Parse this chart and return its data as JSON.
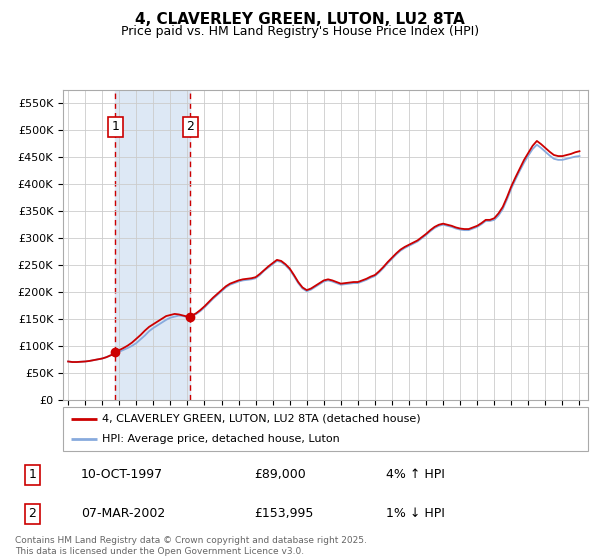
{
  "title": "4, CLAVERLEY GREEN, LUTON, LU2 8TA",
  "subtitle": "Price paid vs. HM Land Registry's House Price Index (HPI)",
  "ylim": [
    0,
    575000
  ],
  "yticks": [
    0,
    50000,
    100000,
    150000,
    200000,
    250000,
    300000,
    350000,
    400000,
    450000,
    500000,
    550000
  ],
  "ytick_labels": [
    "£0",
    "£50K",
    "£100K",
    "£150K",
    "£200K",
    "£250K",
    "£300K",
    "£350K",
    "£400K",
    "£450K",
    "£500K",
    "£550K"
  ],
  "sale1_year": 1997.78,
  "sale1_price": 89000,
  "sale1_label": "1",
  "sale1_date": "10-OCT-1997",
  "sale1_pct": "4% ↑ HPI",
  "sale2_year": 2002.18,
  "sale2_price": 153995,
  "sale2_label": "2",
  "sale2_date": "07-MAR-2002",
  "sale2_pct": "1% ↓ HPI",
  "line_color_red": "#cc0000",
  "line_color_blue": "#88aadd",
  "marker_color": "#cc0000",
  "shade_color": "#dde8f5",
  "dashed_color": "#cc0000",
  "grid_color": "#cccccc",
  "bg_color": "#ffffff",
  "legend_label_red": "4, CLAVERLEY GREEN, LUTON, LU2 8TA (detached house)",
  "legend_label_blue": "HPI: Average price, detached house, Luton",
  "copyright_text": "Contains HM Land Registry data © Crown copyright and database right 2025.\nThis data is licensed under the Open Government Licence v3.0.",
  "hpi_years": [
    1995.0,
    1995.25,
    1995.5,
    1995.75,
    1996.0,
    1996.25,
    1996.5,
    1996.75,
    1997.0,
    1997.25,
    1997.5,
    1997.75,
    1998.0,
    1998.25,
    1998.5,
    1998.75,
    1999.0,
    1999.25,
    1999.5,
    1999.75,
    2000.0,
    2000.25,
    2000.5,
    2000.75,
    2001.0,
    2001.25,
    2001.5,
    2001.75,
    2002.0,
    2002.25,
    2002.5,
    2002.75,
    2003.0,
    2003.25,
    2003.5,
    2003.75,
    2004.0,
    2004.25,
    2004.5,
    2004.75,
    2005.0,
    2005.25,
    2005.5,
    2005.75,
    2006.0,
    2006.25,
    2006.5,
    2006.75,
    2007.0,
    2007.25,
    2007.5,
    2007.75,
    2008.0,
    2008.25,
    2008.5,
    2008.75,
    2009.0,
    2009.25,
    2009.5,
    2009.75,
    2010.0,
    2010.25,
    2010.5,
    2010.75,
    2011.0,
    2011.25,
    2011.5,
    2011.75,
    2012.0,
    2012.25,
    2012.5,
    2012.75,
    2013.0,
    2013.25,
    2013.5,
    2013.75,
    2014.0,
    2014.25,
    2014.5,
    2014.75,
    2015.0,
    2015.25,
    2015.5,
    2015.75,
    2016.0,
    2016.25,
    2016.5,
    2016.75,
    2017.0,
    2017.25,
    2017.5,
    2017.75,
    2018.0,
    2018.25,
    2018.5,
    2018.75,
    2019.0,
    2019.25,
    2019.5,
    2019.75,
    2020.0,
    2020.25,
    2020.5,
    2020.75,
    2021.0,
    2021.25,
    2021.5,
    2021.75,
    2022.0,
    2022.25,
    2022.5,
    2022.75,
    2023.0,
    2023.25,
    2023.5,
    2023.75,
    2024.0,
    2024.25,
    2024.5,
    2024.75,
    2025.0
  ],
  "hpi_values": [
    72000,
    71000,
    71000,
    71500,
    72000,
    73000,
    74500,
    76000,
    77500,
    80000,
    83500,
    86000,
    90000,
    93500,
    97000,
    101000,
    106000,
    113000,
    120000,
    128000,
    134000,
    139000,
    144000,
    149000,
    153000,
    155000,
    157000,
    156000,
    154000,
    156000,
    159500,
    165000,
    172000,
    180000,
    188000,
    195000,
    202000,
    209000,
    214000,
    217000,
    220000,
    222000,
    223000,
    224000,
    226000,
    232000,
    240000,
    246000,
    252000,
    258000,
    256000,
    250000,
    242000,
    230000,
    217000,
    207000,
    202000,
    205000,
    210000,
    215000,
    220000,
    222000,
    220000,
    217000,
    214000,
    215000,
    216000,
    217000,
    217000,
    220000,
    223000,
    227000,
    230000,
    237000,
    245000,
    254000,
    262000,
    270000,
    277000,
    282000,
    286000,
    290000,
    294000,
    300000,
    306000,
    313000,
    319000,
    323000,
    325000,
    323000,
    321000,
    318000,
    316000,
    315000,
    315000,
    318000,
    321000,
    326000,
    332000,
    332000,
    334000,
    342000,
    354000,
    372000,
    392000,
    409000,
    425000,
    440000,
    453000,
    465000,
    473000,
    467000,
    460000,
    453000,
    447000,
    445000,
    445000,
    447000,
    449000,
    451000,
    452000
  ],
  "red_years": [
    1995.0,
    1995.25,
    1995.5,
    1995.75,
    1996.0,
    1996.25,
    1996.5,
    1996.75,
    1997.0,
    1997.25,
    1997.5,
    1997.75,
    1997.78,
    1998.0,
    1998.25,
    1998.5,
    1998.75,
    1999.0,
    1999.25,
    1999.5,
    1999.75,
    2000.0,
    2000.25,
    2000.5,
    2000.75,
    2001.0,
    2001.25,
    2001.5,
    2001.75,
    2002.0,
    2002.18,
    2002.25,
    2002.5,
    2002.75,
    2003.0,
    2003.25,
    2003.5,
    2003.75,
    2004.0,
    2004.25,
    2004.5,
    2004.75,
    2005.0,
    2005.25,
    2005.5,
    2005.75,
    2006.0,
    2006.25,
    2006.5,
    2006.75,
    2007.0,
    2007.25,
    2007.5,
    2007.75,
    2008.0,
    2008.25,
    2008.5,
    2008.75,
    2009.0,
    2009.25,
    2009.5,
    2009.75,
    2010.0,
    2010.25,
    2010.5,
    2010.75,
    2011.0,
    2011.25,
    2011.5,
    2011.75,
    2012.0,
    2012.25,
    2012.5,
    2012.75,
    2013.0,
    2013.25,
    2013.5,
    2013.75,
    2014.0,
    2014.25,
    2014.5,
    2014.75,
    2015.0,
    2015.25,
    2015.5,
    2015.75,
    2016.0,
    2016.25,
    2016.5,
    2016.75,
    2017.0,
    2017.25,
    2017.5,
    2017.75,
    2018.0,
    2018.25,
    2018.5,
    2018.75,
    2019.0,
    2019.25,
    2019.5,
    2019.75,
    2020.0,
    2020.25,
    2020.5,
    2020.75,
    2021.0,
    2021.25,
    2021.5,
    2021.75,
    2022.0,
    2022.25,
    2022.5,
    2022.75,
    2023.0,
    2023.25,
    2023.5,
    2023.75,
    2024.0,
    2024.25,
    2024.5,
    2024.75,
    2025.0
  ],
  "red_values": [
    72000,
    71000,
    71000,
    71500,
    72000,
    73000,
    74500,
    76000,
    77500,
    80000,
    83500,
    86000,
    89000,
    93000,
    97000,
    101500,
    107000,
    114000,
    121000,
    129000,
    136000,
    141000,
    146000,
    151000,
    156000,
    158000,
    160000,
    159000,
    157000,
    155000,
    153995,
    157000,
    161000,
    167000,
    174000,
    182000,
    190000,
    197000,
    204000,
    211000,
    216000,
    219000,
    222000,
    224000,
    225000,
    226000,
    228000,
    234000,
    241000,
    248000,
    254000,
    260000,
    258000,
    252000,
    244000,
    232000,
    219000,
    209000,
    204000,
    207000,
    212000,
    217000,
    222000,
    224000,
    222000,
    219000,
    216000,
    217000,
    218000,
    219000,
    219000,
    222000,
    225000,
    229000,
    232000,
    239000,
    247000,
    256000,
    264000,
    272000,
    279000,
    284000,
    288000,
    292000,
    296000,
    302000,
    308000,
    315000,
    321000,
    325000,
    327000,
    325000,
    323000,
    320000,
    318000,
    317000,
    317000,
    320000,
    323000,
    328000,
    334000,
    334000,
    337000,
    346000,
    358000,
    376000,
    396000,
    413000,
    429000,
    445000,
    458000,
    471000,
    480000,
    474000,
    467000,
    460000,
    454000,
    452000,
    452000,
    454000,
    456000,
    459000,
    461000
  ],
  "xtick_years": [
    1995,
    1996,
    1997,
    1998,
    1999,
    2000,
    2001,
    2002,
    2003,
    2004,
    2005,
    2006,
    2007,
    2008,
    2009,
    2010,
    2011,
    2012,
    2013,
    2014,
    2015,
    2016,
    2017,
    2018,
    2019,
    2020,
    2021,
    2022,
    2023,
    2024,
    2025
  ],
  "xlim": [
    1994.7,
    2025.5
  ]
}
